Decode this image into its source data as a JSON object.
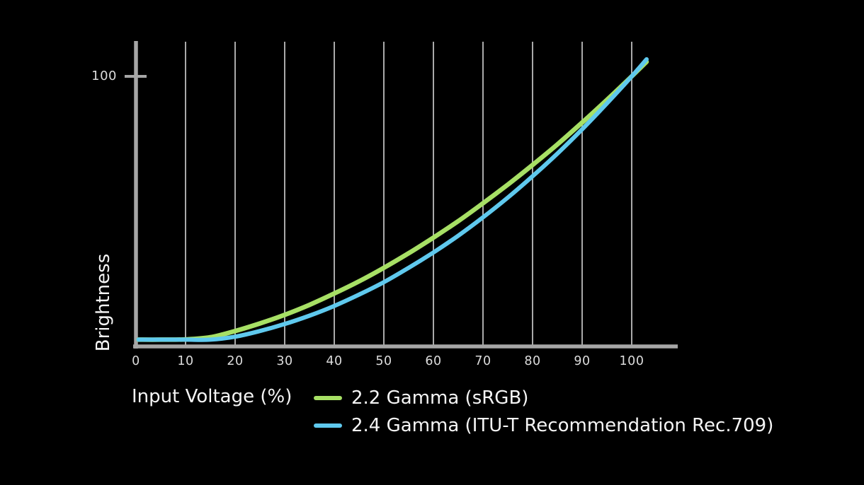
{
  "colors": {
    "background": "#000000",
    "text": "#f5f5f5",
    "tick_text": "#dcdcdc",
    "green_series": "#a7e065",
    "blue_series": "#5fc9ee",
    "axis": "#a6a6a6",
    "gridline": "#bdbdbd"
  },
  "chart_data": {
    "type": "line",
    "title": "",
    "xlabel": "Input Voltage (%)",
    "ylabel": "Brightness",
    "x_ticks": [
      0,
      10,
      20,
      30,
      40,
      50,
      60,
      70,
      80,
      90,
      100
    ],
    "y_ticks": [
      100
    ],
    "y_tick_labels": [
      "100"
    ],
    "xlim": [
      0,
      109
    ],
    "ylim": [
      0,
      113
    ],
    "grid": "vertical-only",
    "legend_position": "bottom",
    "background": "#000000",
    "axis_color": "#a6a6a6",
    "grid_color": "#bdbdbd",
    "x": [
      0.5,
      5,
      10,
      15,
      20,
      25,
      30,
      35,
      40,
      45,
      50,
      55,
      60,
      65,
      70,
      75,
      80,
      85,
      90,
      95,
      100,
      103
    ],
    "series": [
      {
        "name": "2.2 Gamma (sRGB)",
        "gamma": "2.2",
        "standard": "sRGB",
        "color": "#a7e065",
        "stroke_width": 6.5,
        "values": [
          2.5,
          2.5,
          2.6,
          3.4,
          5.7,
          8.5,
          11.7,
          15.4,
          19.6,
          24.1,
          29.1,
          34.5,
          40.3,
          46.4,
          53.0,
          59.9,
          67.2,
          74.8,
          82.9,
          91.3,
          100.0,
          105.4
        ]
      },
      {
        "name": "2.4 Gamma (ITU-T Recommendation Rec.709)",
        "gamma": "2.4",
        "standard": "ITU-T Recommendation Rec.709",
        "color": "#5fc9ee",
        "stroke_width": 6,
        "values": [
          2.5,
          2.5,
          2.5,
          2.5,
          3.6,
          5.7,
          8.3,
          11.4,
          15.0,
          19.2,
          23.8,
          29.1,
          34.8,
          41.0,
          47.8,
          55.1,
          63.0,
          71.4,
          80.4,
          90.0,
          100.0,
          106.3
        ]
      }
    ]
  }
}
